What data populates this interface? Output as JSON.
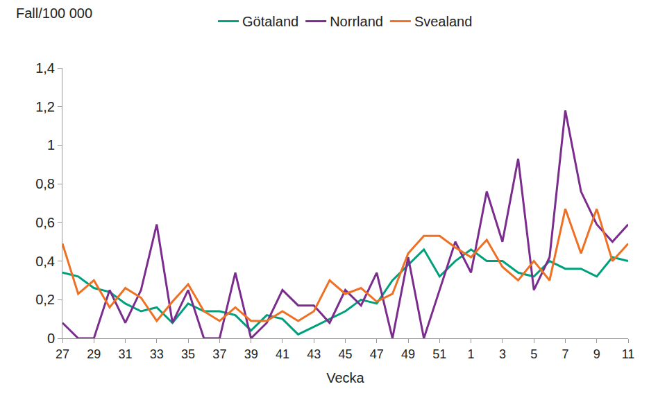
{
  "chart_data": {
    "type": "line",
    "y_label": "Fall/100 000",
    "x_label": "Vecka",
    "categories": [
      "27",
      null,
      "29",
      null,
      "31",
      null,
      "33",
      null,
      "35",
      null,
      "37",
      null,
      "39",
      null,
      "41",
      null,
      "43",
      null,
      "45",
      null,
      "47",
      null,
      "49",
      null,
      "51",
      null,
      "1",
      null,
      "3",
      null,
      "5",
      null,
      "7",
      null,
      "9",
      null,
      "11"
    ],
    "series": [
      {
        "name": "Götaland",
        "color": "#00a07d",
        "values": [
          0.34,
          0.32,
          0.26,
          0.24,
          0.18,
          0.14,
          0.16,
          0.08,
          0.18,
          0.14,
          0.14,
          0.12,
          0.04,
          0.12,
          0.1,
          0.02,
          0.06,
          0.1,
          0.14,
          0.2,
          0.18,
          0.3,
          0.38,
          0.46,
          0.32,
          0.4,
          0.46,
          0.4,
          0.4,
          0.34,
          0.32,
          0.4,
          0.36,
          0.36,
          0.32,
          0.42,
          0.4
        ]
      },
      {
        "name": "Norrland",
        "color": "#7b2d8e",
        "values": [
          0.08,
          0,
          0,
          0.25,
          0.08,
          0.25,
          0.59,
          0.08,
          0.25,
          0,
          0,
          0.34,
          0,
          0.08,
          0.25,
          0.17,
          0.17,
          0.08,
          0.25,
          0.17,
          0.34,
          0,
          0.42,
          0,
          0.25,
          0.5,
          0.34,
          0.76,
          0.5,
          0.93,
          0.25,
          0.42,
          1.18,
          0.76,
          0.59,
          0.5,
          0.59
        ]
      },
      {
        "name": "Svealand",
        "color": "#ee7023",
        "values": [
          0.49,
          0.23,
          0.3,
          0.16,
          0.26,
          0.21,
          0.09,
          0.19,
          0.28,
          0.14,
          0.09,
          0.16,
          0.09,
          0.09,
          0.14,
          0.09,
          0.14,
          0.3,
          0.23,
          0.26,
          0.19,
          0.23,
          0.44,
          0.53,
          0.53,
          0.47,
          0.42,
          0.51,
          0.37,
          0.3,
          0.4,
          0.3,
          0.67,
          0.44,
          0.67,
          0.4,
          0.49
        ]
      }
    ],
    "ylim": [
      0,
      1.4
    ],
    "yticks": [
      0,
      {
        "value": 0.2,
        "label": "0,2"
      },
      {
        "value": 0.4,
        "label": "0,4"
      },
      {
        "value": 0.6,
        "label": "0,6"
      },
      {
        "value": 0.8,
        "label": "0,8"
      },
      {
        "value": 1,
        "label": "1"
      },
      {
        "value": 1.2,
        "label": "1,2"
      },
      {
        "value": 1.4,
        "label": "1,4"
      }
    ],
    "grid": false,
    "legend": "top"
  }
}
